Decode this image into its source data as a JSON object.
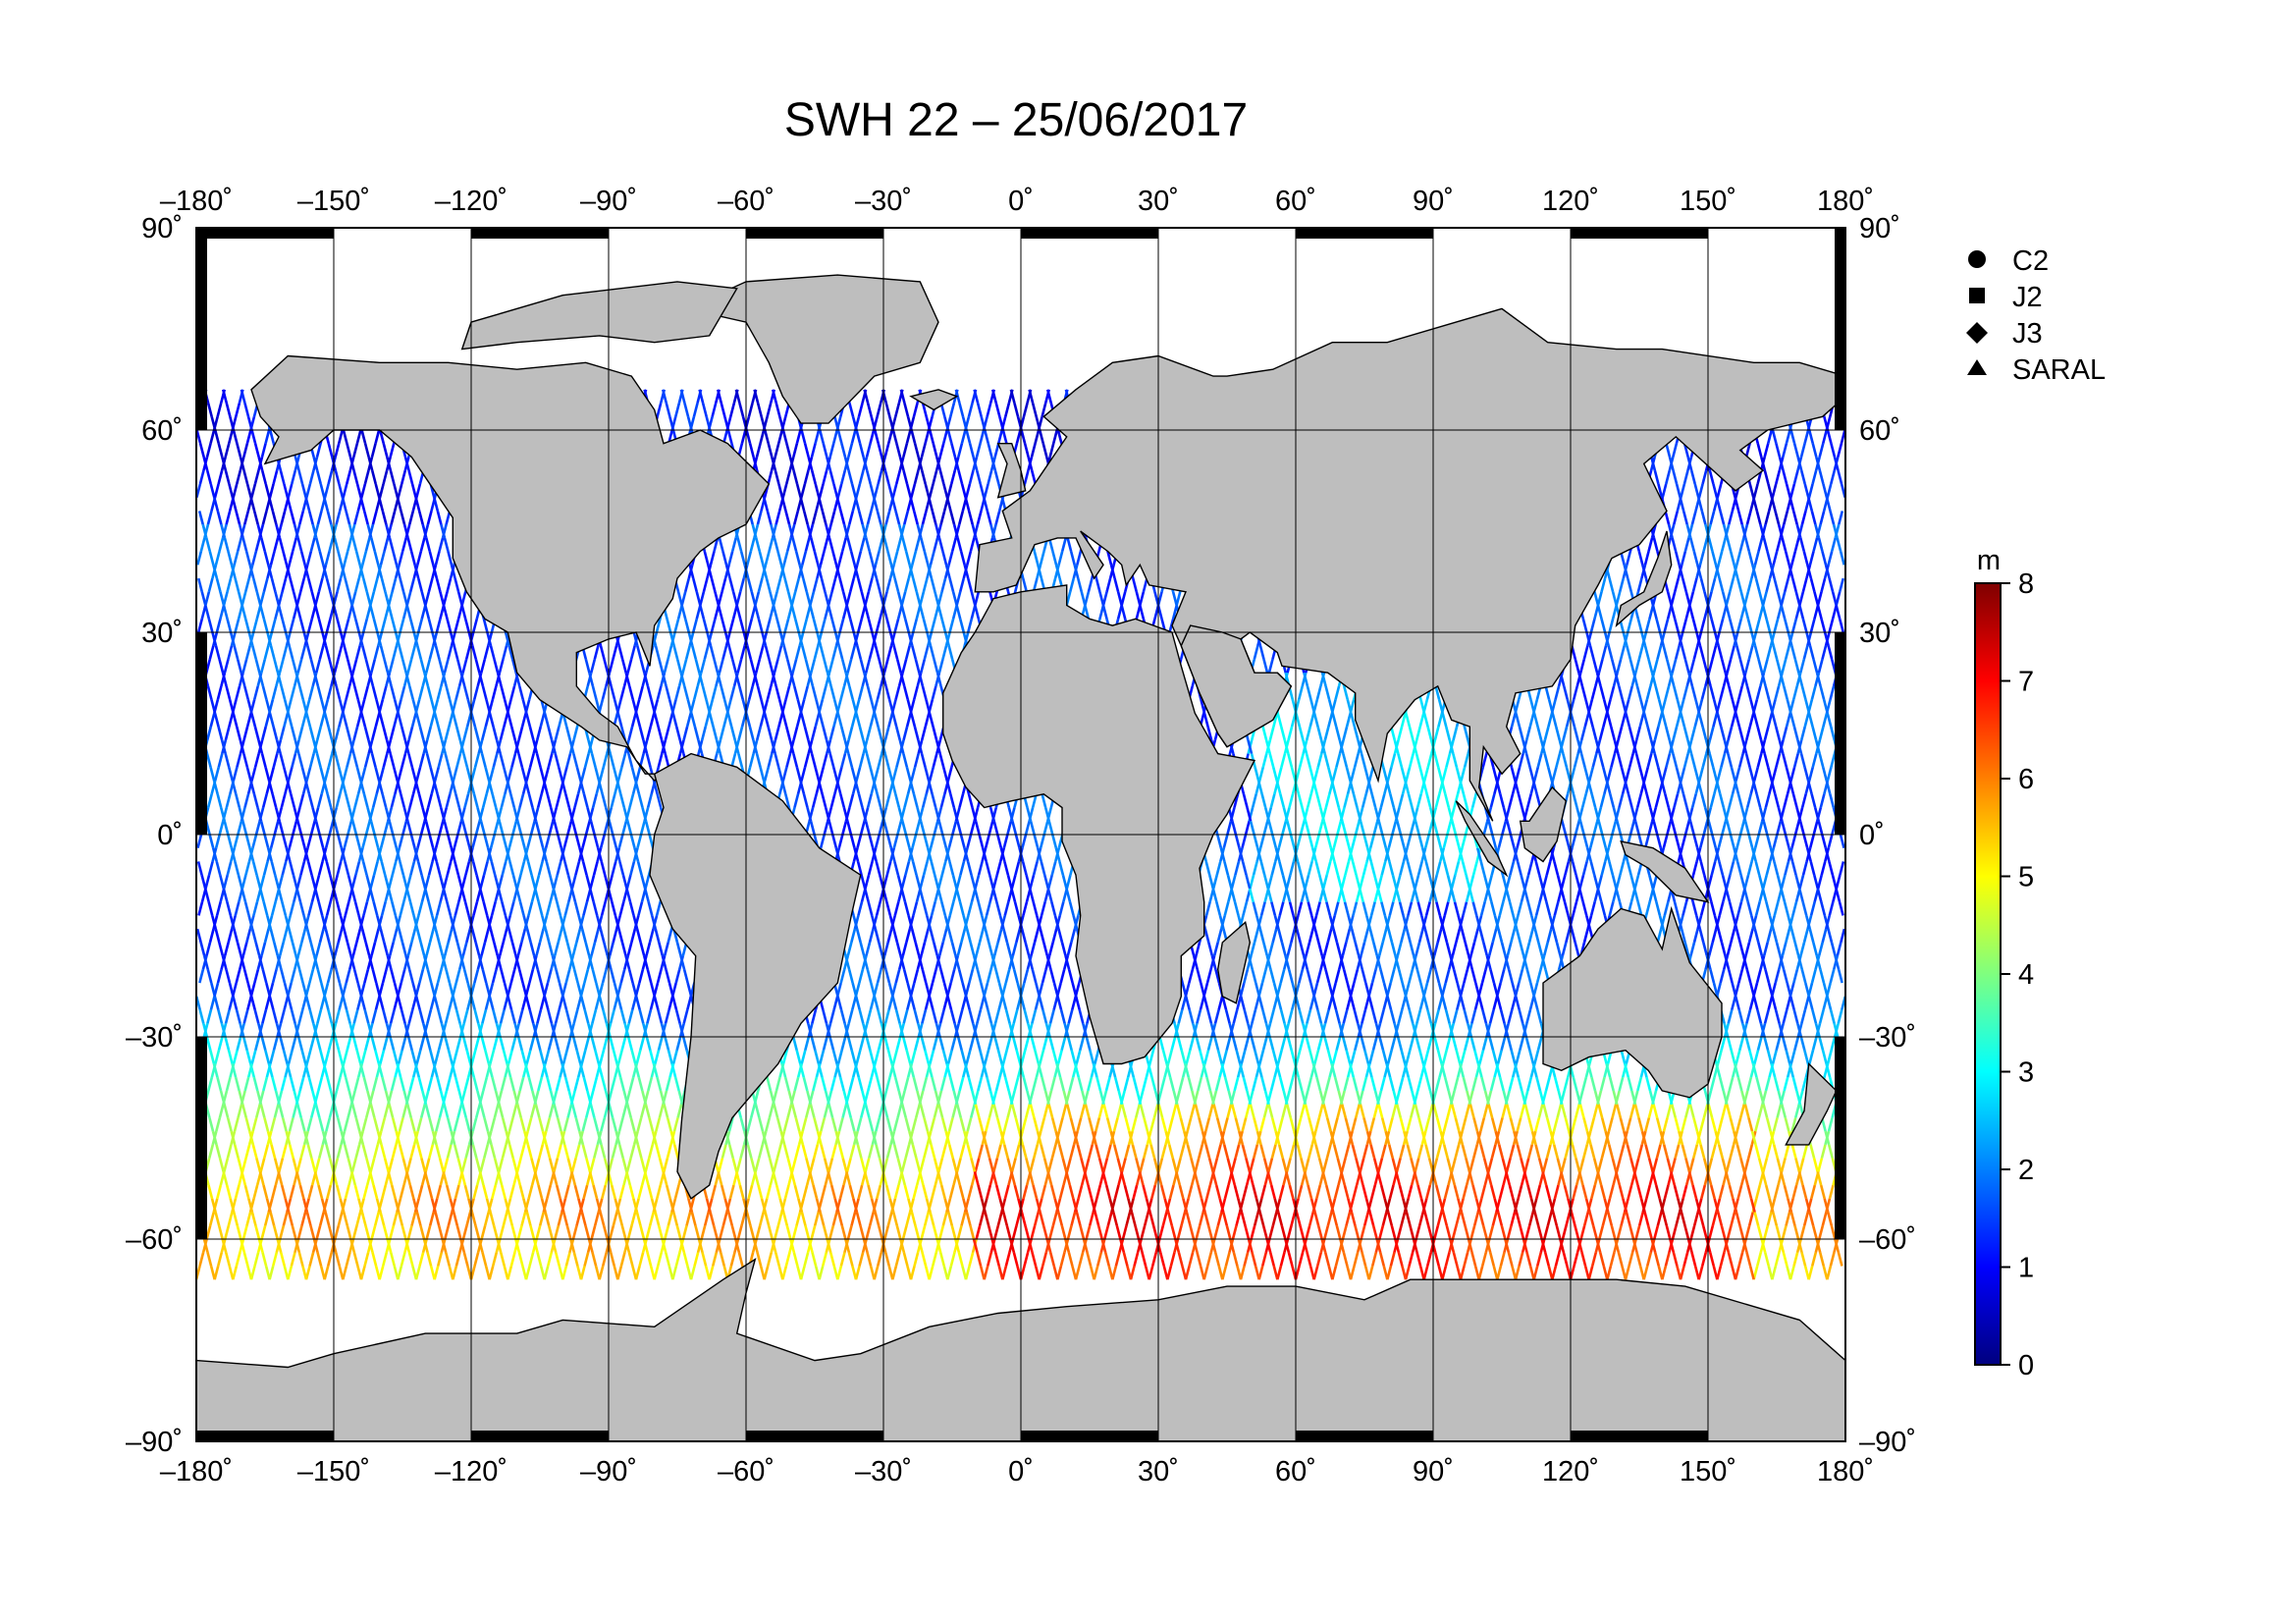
{
  "title": "SWH 22 – 25/06/2017",
  "lon_ticks": [
    {
      "value": -180,
      "label": "–180˚"
    },
    {
      "value": -150,
      "label": "–150˚"
    },
    {
      "value": -120,
      "label": "–120˚"
    },
    {
      "value": -90,
      "label": "–90˚"
    },
    {
      "value": -60,
      "label": "–60˚"
    },
    {
      "value": -30,
      "label": "–30˚"
    },
    {
      "value": 0,
      "label": "0˚"
    },
    {
      "value": 30,
      "label": "30˚"
    },
    {
      "value": 60,
      "label": "60˚"
    },
    {
      "value": 90,
      "label": "90˚"
    },
    {
      "value": 120,
      "label": "120˚"
    },
    {
      "value": 150,
      "label": "150˚"
    },
    {
      "value": 180,
      "label": "180˚"
    }
  ],
  "lat_ticks": [
    {
      "value": 90,
      "label": "90˚"
    },
    {
      "value": 60,
      "label": "60˚"
    },
    {
      "value": 30,
      "label": "30˚"
    },
    {
      "value": 0,
      "label": "0˚"
    },
    {
      "value": -30,
      "label": "–30˚"
    },
    {
      "value": -60,
      "label": "–60˚"
    },
    {
      "value": -90,
      "label": "–90˚"
    }
  ],
  "legend": [
    {
      "label": "C2",
      "icon": "circle-icon"
    },
    {
      "label": "J2",
      "icon": "square-icon"
    },
    {
      "label": "J3",
      "icon": "diamond-icon"
    },
    {
      "label": "SARAL",
      "icon": "triangle-icon"
    }
  ],
  "colorbar": {
    "unit": "m",
    "ticks": [
      "0",
      "1",
      "2",
      "3",
      "4",
      "5",
      "6",
      "7",
      "8"
    ],
    "min": 0,
    "max": 8,
    "colors": [
      "#00007f",
      "#0000ff",
      "#007fff",
      "#00ffff",
      "#7fff7f",
      "#ffff00",
      "#ff7f00",
      "#ff0000",
      "#7f0000"
    ]
  },
  "colors": {
    "land": "#bebebe",
    "land_outline": "#000000",
    "ocean": "#ffffff"
  }
}
